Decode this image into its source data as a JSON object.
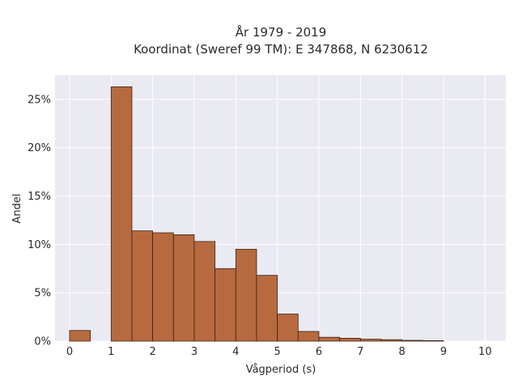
{
  "chart_data": {
    "type": "bar",
    "title": "År 1979 - 2019",
    "subtitle": "Koordinat (Sweref 99 TM): E 347868, N 6230612",
    "xlabel": "Vågperiod (s)",
    "ylabel": "Andel",
    "xlim": [
      -0.35,
      10.5
    ],
    "ylim": [
      0,
      27.5
    ],
    "x_ticks": [
      0,
      1,
      2,
      3,
      4,
      5,
      6,
      7,
      8,
      9,
      10
    ],
    "y_ticks": [
      {
        "value": 0,
        "label": "0%"
      },
      {
        "value": 5,
        "label": "5%"
      },
      {
        "value": 10,
        "label": "10%"
      },
      {
        "value": 15,
        "label": "15%"
      },
      {
        "value": 20,
        "label": "20%"
      },
      {
        "value": 25,
        "label": "25%"
      }
    ],
    "bin_width": 0.5,
    "bins": [
      {
        "start": 0.0,
        "value": 1.1
      },
      {
        "start": 1.0,
        "value": 26.3
      },
      {
        "start": 1.5,
        "value": 11.4
      },
      {
        "start": 2.0,
        "value": 11.2
      },
      {
        "start": 2.5,
        "value": 11.0
      },
      {
        "start": 3.0,
        "value": 10.3
      },
      {
        "start": 3.5,
        "value": 7.5
      },
      {
        "start": 4.0,
        "value": 9.5
      },
      {
        "start": 4.5,
        "value": 6.8
      },
      {
        "start": 5.0,
        "value": 2.8
      },
      {
        "start": 5.5,
        "value": 1.0
      },
      {
        "start": 6.0,
        "value": 0.4
      },
      {
        "start": 6.5,
        "value": 0.3
      },
      {
        "start": 7.0,
        "value": 0.2
      },
      {
        "start": 7.5,
        "value": 0.15
      },
      {
        "start": 8.0,
        "value": 0.08
      },
      {
        "start": 8.5,
        "value": 0.05
      }
    ],
    "grid": true,
    "colors": {
      "bar_fill": "#b76a3f",
      "bar_stroke": "#3a2418",
      "plot_background": "#eaeaf2",
      "grid": "#ffffff"
    }
  }
}
